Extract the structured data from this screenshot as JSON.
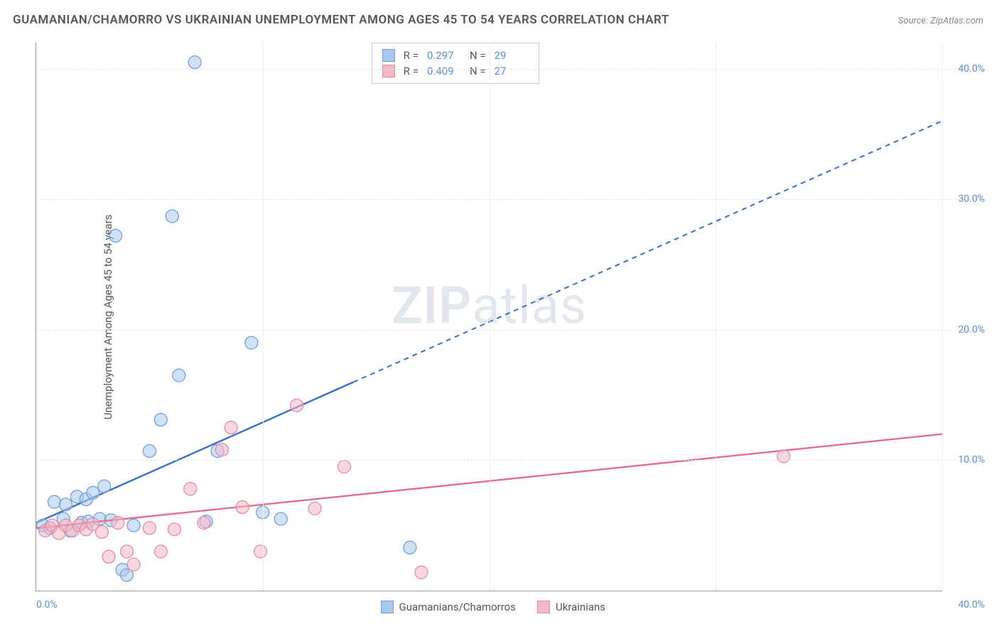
{
  "title": "GUAMANIAN/CHAMORRO VS UKRAINIAN UNEMPLOYMENT AMONG AGES 45 TO 54 YEARS CORRELATION CHART",
  "source_label": "Source: ZipAtlas.com",
  "ylabel": "Unemployment Among Ages 45 to 54 years",
  "watermark_bold": "ZIP",
  "watermark_light": "atlas",
  "chart": {
    "type": "scatter",
    "background_color": "#ffffff",
    "grid_color": "#e5e5e5",
    "axis_color": "#999999",
    "xlim": [
      0,
      40
    ],
    "ylim": [
      0,
      42
    ],
    "xticks": [
      0,
      10,
      20,
      30,
      40
    ],
    "yticks": [
      10,
      20,
      30,
      40
    ],
    "ytick_labels": [
      "10.0%",
      "20.0%",
      "30.0%",
      "40.0%"
    ],
    "xtick_left_label": "0.0%",
    "xtick_right_label": "40.0%",
    "marker_radius": 9,
    "marker_opacity": 0.55,
    "series": [
      {
        "name": "Guamanians/Chamorros",
        "color_fill": "#a9c7ec",
        "color_stroke": "#6fa0dd",
        "R": "0.297",
        "N": "29",
        "trend": {
          "x1": 0,
          "y1": 5.2,
          "x2": 40,
          "y2": 36.0,
          "solid_until_x": 14,
          "color": "#3a6fc7"
        },
        "points": [
          [
            0.3,
            5.0
          ],
          [
            0.6,
            4.8
          ],
          [
            0.8,
            6.8
          ],
          [
            1.2,
            5.5
          ],
          [
            1.3,
            6.6
          ],
          [
            1.5,
            4.6
          ],
          [
            1.8,
            7.2
          ],
          [
            2.0,
            5.2
          ],
          [
            2.2,
            7.0
          ],
          [
            2.3,
            5.3
          ],
          [
            2.5,
            7.5
          ],
          [
            2.8,
            5.5
          ],
          [
            3.0,
            8.0
          ],
          [
            3.3,
            5.4
          ],
          [
            3.5,
            27.2
          ],
          [
            3.8,
            1.6
          ],
          [
            4.0,
            1.2
          ],
          [
            4.3,
            5.0
          ],
          [
            5.0,
            10.7
          ],
          [
            5.5,
            13.1
          ],
          [
            6.0,
            28.7
          ],
          [
            6.3,
            16.5
          ],
          [
            7.0,
            40.5
          ],
          [
            7.5,
            5.3
          ],
          [
            8.0,
            10.7
          ],
          [
            9.5,
            19.0
          ],
          [
            10.0,
            6.0
          ],
          [
            10.8,
            5.5
          ],
          [
            16.5,
            3.3
          ]
        ]
      },
      {
        "name": "Ukrainians",
        "color_fill": "#f3b8c6",
        "color_stroke": "#e88aa3",
        "R": "0.409",
        "N": "27",
        "trend": {
          "x1": 0,
          "y1": 4.8,
          "x2": 40,
          "y2": 12.0,
          "solid_until_x": 40,
          "color": "#e36f8f"
        },
        "points": [
          [
            0.4,
            4.6
          ],
          [
            0.7,
            5.0
          ],
          [
            1.0,
            4.4
          ],
          [
            1.3,
            5.0
          ],
          [
            1.6,
            4.6
          ],
          [
            1.9,
            5.0
          ],
          [
            2.2,
            4.7
          ],
          [
            2.5,
            5.1
          ],
          [
            2.9,
            4.5
          ],
          [
            3.2,
            2.6
          ],
          [
            3.6,
            5.2
          ],
          [
            4.0,
            3.0
          ],
          [
            4.3,
            2.0
          ],
          [
            5.0,
            4.8
          ],
          [
            5.5,
            3.0
          ],
          [
            6.1,
            4.7
          ],
          [
            6.8,
            7.8
          ],
          [
            7.4,
            5.2
          ],
          [
            8.2,
            10.8
          ],
          [
            8.6,
            12.5
          ],
          [
            9.1,
            6.4
          ],
          [
            9.9,
            3.0
          ],
          [
            11.5,
            14.2
          ],
          [
            12.3,
            6.3
          ],
          [
            13.6,
            9.5
          ],
          [
            17.0,
            1.4
          ],
          [
            33.0,
            10.3
          ]
        ]
      }
    ]
  },
  "title_fontsize": 17,
  "label_fontsize": 15,
  "tick_fontsize": 14,
  "tick_color": "#5b8dd6"
}
